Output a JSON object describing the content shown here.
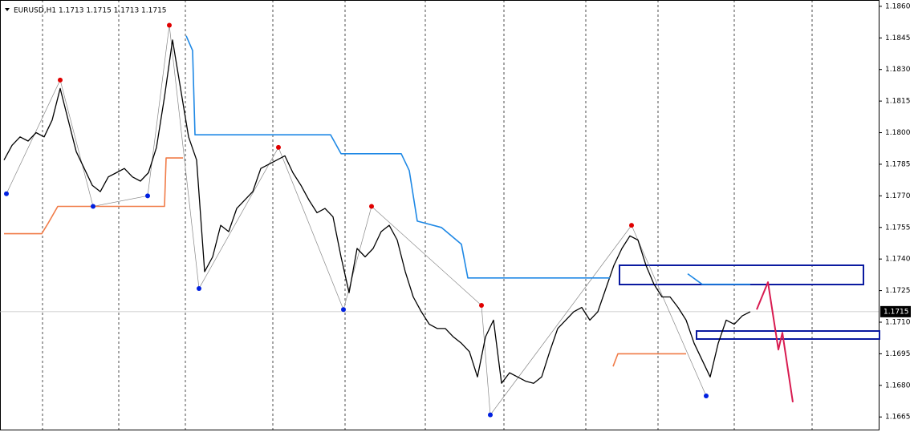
{
  "chart_data": {
    "type": "line",
    "title": "EURUSD,H1  1.1713 1.1715 1.1713 1.1715",
    "last_price": 1.1715,
    "ylim": [
      1.1659,
      1.1863
    ],
    "xlim": [
      -0.5,
      109
    ],
    "yticks": [
      {
        "value": 1.186,
        "label": "1.1860"
      },
      {
        "value": 1.1845,
        "label": "1.1845"
      },
      {
        "value": 1.183,
        "label": "1.1830"
      },
      {
        "value": 1.1815,
        "label": "1.1815"
      },
      {
        "value": 1.18,
        "label": "1.1800"
      },
      {
        "value": 1.1785,
        "label": "1.1785"
      },
      {
        "value": 1.177,
        "label": "1.1770"
      },
      {
        "value": 1.1755,
        "label": "1.1755"
      },
      {
        "value": 1.174,
        "label": "1.1740"
      },
      {
        "value": 1.1725,
        "label": "1.1725"
      },
      {
        "value": 1.171,
        "label": "1.1710"
      },
      {
        "value": 1.1695,
        "label": "1.1695"
      },
      {
        "value": 1.168,
        "label": "1.1680"
      },
      {
        "value": 1.1665,
        "label": "1.1665"
      }
    ],
    "series": [
      {
        "color": "#000000",
        "width": 1.3,
        "values": [
          1.1787,
          1.1794,
          1.1798,
          1.1796,
          1.18,
          1.1798,
          1.1806,
          1.1821,
          1.1806,
          1.1791,
          1.1783,
          1.1775,
          1.1772,
          1.1779,
          1.1781,
          1.1783,
          1.1779,
          1.1777,
          1.1781,
          1.1793,
          1.1817,
          1.1844,
          1.1821,
          1.1798,
          1.1787,
          1.1734,
          1.1741,
          1.1756,
          1.1753,
          1.1764,
          1.1768,
          1.1772,
          1.1783,
          1.1785,
          1.1787,
          1.1789,
          1.1781,
          1.1775,
          1.1768,
          1.1762,
          1.1764,
          1.176,
          1.1741,
          1.1724,
          1.1745,
          1.1741,
          1.1745,
          1.1753,
          1.1756,
          1.1749,
          1.1734,
          1.1722,
          1.1715,
          1.1709,
          1.1707,
          1.1707,
          1.1703,
          1.17,
          1.1696,
          1.1684,
          1.1703,
          1.1711,
          1.1681,
          1.1686,
          1.1684,
          1.1682,
          1.1681,
          1.1684,
          1.1696,
          1.1707,
          1.1711,
          1.1715,
          1.1717,
          1.1711,
          1.1715,
          1.1726,
          1.1737,
          1.1745,
          1.1751,
          1.1749,
          1.1737,
          1.1728,
          1.1722,
          1.1722,
          1.1717,
          1.1711,
          1.17,
          1.1692,
          1.1684,
          1.17,
          1.1711,
          1.1709,
          1.1713,
          1.1715
        ]
      },
      {
        "color": "#1e88e5",
        "width": 1.6,
        "x": [
          22.7,
          23.5,
          23.8,
          40.7,
          42,
          49.5,
          50.5,
          51.5,
          54.5,
          57,
          57.8,
          75.5,
          null,
          85.2,
          87,
          93
        ],
        "values": [
          1.1846,
          1.1839,
          1.1799,
          1.1799,
          1.179,
          1.179,
          1.1782,
          1.1758,
          1.1755,
          1.1747,
          1.1731,
          1.1731,
          null,
          1.1733,
          1.1728,
          1.1728
        ]
      },
      {
        "color": "#f07b47",
        "width": 1.6,
        "x": [
          0,
          4.7,
          5.5,
          6.7,
          20,
          20.2,
          22.3,
          null,
          75.9,
          76.5,
          85
        ],
        "values": [
          1.1752,
          1.1752,
          1.1757,
          1.1765,
          1.1765,
          1.1788,
          1.1788,
          null,
          1.1689,
          1.1695,
          1.1695
        ]
      },
      {
        "color": "#d81b50",
        "width": 2,
        "x": [
          93.8,
          95.2,
          96.5,
          97,
          98.3
        ],
        "values": [
          1.1716,
          1.1729,
          1.1697,
          1.1705,
          1.1672
        ]
      },
      {
        "color": "#e00000",
        "marker": true,
        "x": [
          7,
          20.6,
          34.2,
          45.8,
          59.5,
          78.2
        ],
        "values": [
          1.1825,
          1.1851,
          1.1793,
          1.1765,
          1.1718,
          1.1756
        ]
      },
      {
        "color": "#0020e0",
        "marker": true,
        "x": [
          0.3,
          11.1,
          17.9,
          24.3,
          42.3,
          60.6,
          87.5
        ],
        "values": [
          1.1771,
          1.1765,
          1.177,
          1.1726,
          1.1716,
          1.1666,
          1.1675
        ]
      }
    ]
  }
}
